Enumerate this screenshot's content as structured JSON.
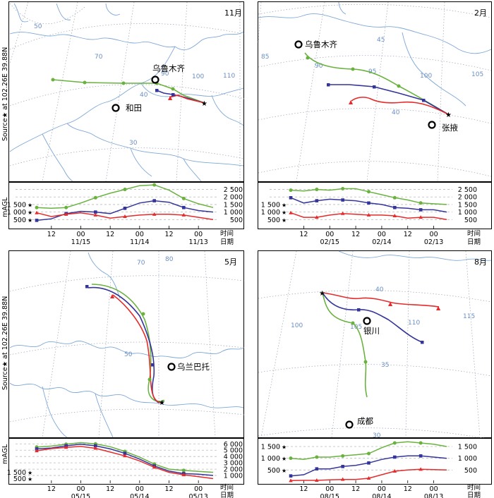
{
  "layout_cities_note": "",
  "colors": {
    "green": "#6ab23f",
    "blue": "#33359a",
    "red": "#e52b2b",
    "border": "#7ea7d6",
    "graticule": "#9aa4b4"
  },
  "common": {
    "source_label": "Source★ at 102.26E 39.88N",
    "yaxis_label": "mAGL",
    "time_label": "时间",
    "date_label": "日期"
  },
  "panels": [
    {
      "month": "11月",
      "lat_labels": [
        "50",
        "40",
        "30"
      ],
      "lon_labels": [
        "70",
        "90",
        "100",
        "110"
      ],
      "cities": [
        "乌鲁木齐",
        "和田"
      ],
      "chart_data": {
        "type": "line",
        "ytick_labels": [
          "500",
          "1 000",
          "1 500",
          "2 000",
          "2 500"
        ],
        "ylim": [
          0,
          2900
        ],
        "xtick_time_labels": [
          "12",
          "00",
          "12",
          "00",
          "12",
          "00"
        ],
        "xtick_date_labels": [
          "11/15",
          "11/14",
          "11/13"
        ],
        "x": [
          0,
          6,
          12,
          18,
          24,
          30,
          36,
          42,
          48,
          54,
          60,
          66,
          72
        ],
        "series": [
          {
            "color": "green",
            "values": [
              1300,
              1550,
              1900,
              2450,
              2800,
              2750,
              2500,
              2250,
              1950,
              1600,
              1300,
              1250,
              1300
            ]
          },
          {
            "color": "blue",
            "values": [
              1000,
              1100,
              1300,
              1650,
              1750,
              1600,
              1250,
              900,
              1000,
              1050,
              900,
              550,
              450
            ]
          },
          {
            "color": "red",
            "values": [
              500,
              650,
              800,
              850,
              850,
              800,
              700,
              600,
              800,
              950,
              850,
              700,
              950
            ]
          }
        ]
      }
    },
    {
      "month": "2月",
      "lat_labels": [
        "45",
        "40"
      ],
      "lon_labels": [
        "85",
        "90",
        "95",
        "100",
        "105"
      ],
      "cities": [
        "乌鲁木齐",
        "张掖"
      ],
      "chart_data": {
        "type": "line",
        "ytick_labels": [
          "500",
          "1 000",
          "1 500",
          "2 000",
          "2 500"
        ],
        "ylim": [
          0,
          2900
        ],
        "xtick_time_labels": [
          "12",
          "00",
          "12",
          "00",
          "12",
          "00"
        ],
        "xtick_date_labels": [
          "02/15",
          "02/14",
          "02/13"
        ],
        "x": [
          0,
          6,
          12,
          18,
          24,
          30,
          36,
          42,
          48,
          54,
          60,
          66,
          72
        ],
        "series": [
          {
            "color": "green",
            "values": [
              1500,
              1550,
              1600,
              1800,
              1950,
              2150,
              2350,
              2550,
              2550,
              2450,
              2500,
              2400,
              2450
            ]
          },
          {
            "color": "blue",
            "values": [
              1000,
              1150,
              1150,
              1250,
              1300,
              1500,
              1600,
              1750,
              1800,
              1850,
              1750,
              1600,
              1950
            ]
          },
          {
            "color": "red",
            "values": [
              500,
              650,
              650,
              600,
              750,
              800,
              800,
              850,
              900,
              800,
              650,
              650,
              950
            ]
          }
        ]
      }
    },
    {
      "month": "5月",
      "lat_labels": [
        "50"
      ],
      "lon_labels": [
        "70",
        "80"
      ],
      "cities": [
        "乌兰巴托"
      ],
      "chart_data": {
        "type": "line",
        "ytick_labels": [
          "1 000",
          "2 000",
          "3 000",
          "4 000",
          "5 000",
          "6 000"
        ],
        "ytick_values": [
          1000,
          2000,
          3000,
          4000,
          5000,
          6000
        ],
        "left_tick_labels": [
          "500",
          "1 500"
        ],
        "left_tick_values": [
          500,
          1500
        ],
        "ylim": [
          0,
          6700
        ],
        "xtick_time_labels": [
          "12",
          "00",
          "12",
          "00",
          "12",
          "00"
        ],
        "xtick_date_labels": [
          "05/15",
          "05/14",
          "05/13"
        ],
        "x": [
          0,
          6,
          12,
          18,
          24,
          30,
          36,
          42,
          48,
          54,
          60,
          66,
          72
        ],
        "series": [
          {
            "color": "green",
            "values": [
              1500,
              1650,
              1800,
              2000,
              2800,
              3900,
              4800,
              5550,
              6000,
              6200,
              5950,
              5650,
              5500
            ]
          },
          {
            "color": "blue",
            "values": [
              1000,
              1200,
              1300,
              1700,
              2500,
              3600,
              4500,
              5200,
              5700,
              5950,
              5700,
              5350,
              5200
            ]
          },
          {
            "color": "red",
            "values": [
              500,
              800,
              1100,
              1500,
              2300,
              3300,
              4100,
              4700,
              5300,
              5600,
              5450,
              5250,
              4900
            ]
          }
        ]
      }
    },
    {
      "month": "8月",
      "lat_labels": [
        "40",
        "35",
        "30"
      ],
      "lon_labels": [
        "100",
        "105",
        "110",
        "115"
      ],
      "cities": [
        "银川",
        "成都"
      ],
      "chart_data": {
        "type": "line",
        "ytick_labels": [
          "500",
          "1 000",
          "1 500"
        ],
        "ylim": [
          0,
          1800
        ],
        "xtick_time_labels": [
          "12",
          "00",
          "12",
          "00",
          "12",
          "00"
        ],
        "xtick_date_labels": [
          "08/15",
          "08/14",
          "08/13"
        ],
        "x": [
          0,
          6,
          12,
          18,
          24,
          30,
          36,
          42,
          48,
          54,
          60,
          66,
          72
        ],
        "series": [
          {
            "color": "green",
            "values": [
              1500,
              1600,
              1650,
              1700,
              1650,
              1450,
              1200,
              1150,
              1100,
              1050,
              1050,
              950,
              1000
            ]
          },
          {
            "color": "blue",
            "values": [
              1000,
              1050,
              1100,
              1100,
              1050,
              950,
              800,
              700,
              650,
              550,
              550,
              300,
              250
            ]
          },
          {
            "color": "red",
            "values": [
              500,
              520,
              530,
              500,
              450,
              300,
              150,
              100,
              100,
              80,
              60,
              60,
              50
            ]
          }
        ]
      }
    }
  ]
}
